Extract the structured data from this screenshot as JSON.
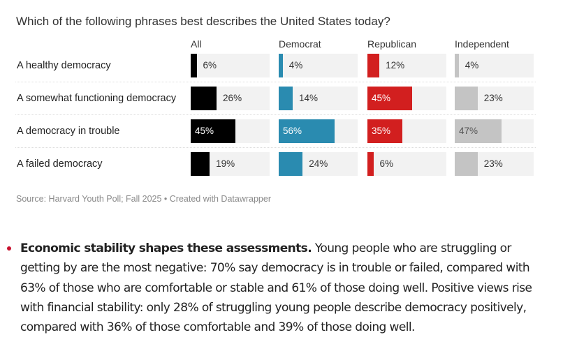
{
  "chart_data": {
    "type": "bar",
    "title": "Which of the following phrases best describes the United States today?",
    "categories": [
      "A healthy democracy",
      "A somewhat functioning democracy",
      "A democracy in trouble",
      "A failed democracy"
    ],
    "series": [
      {
        "name": "All",
        "values": [
          6,
          26,
          45,
          19
        ],
        "color": "#000000"
      },
      {
        "name": "Democrat",
        "values": [
          4,
          14,
          56,
          24
        ],
        "color": "#2a8bb0"
      },
      {
        "name": "Republican",
        "values": [
          12,
          45,
          35,
          6
        ],
        "color": "#d21f1f"
      },
      {
        "name": "Independent",
        "values": [
          4,
          23,
          47,
          23
        ],
        "color": "#c4c4c4"
      }
    ],
    "value_suffix": "%",
    "source": "Source: Harvard Youth Poll; Fall 2025 • Created with Datawrapper"
  },
  "article": {
    "bold": "Economic stability shapes these assessments.",
    "text": " Young people who are struggling or getting by are the most negative: 70% say democracy is in trouble or failed, compared with 63% of those who are comfortable or stable and 61% of those doing well. Positive views rise with financial stability: only 28% of struggling young people describe democracy positively, compared with 36% of those comfortable and 39% of those doing well."
  }
}
